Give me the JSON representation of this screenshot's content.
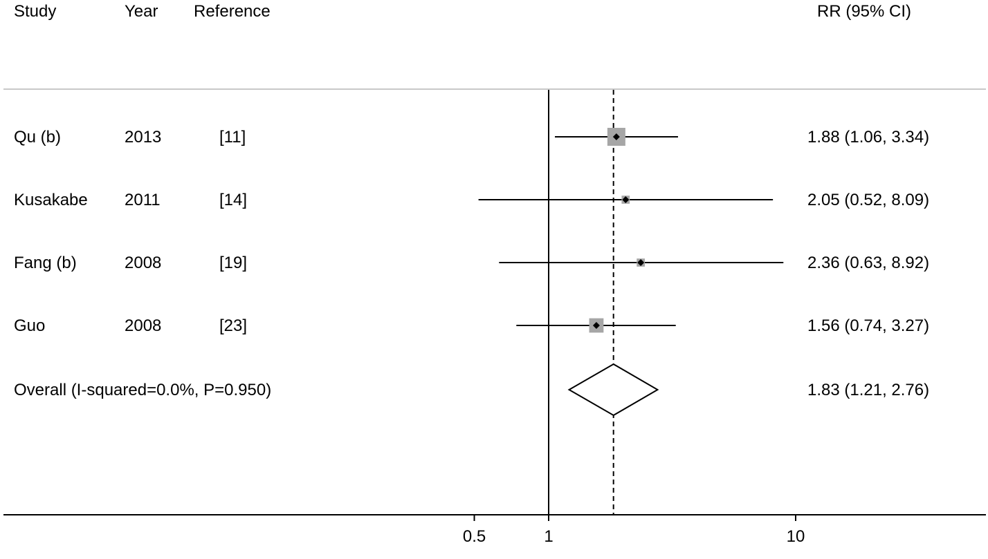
{
  "chart_data": {
    "type": "forest",
    "scale": "log",
    "headers": {
      "study": "Study",
      "year": "Year",
      "reference": "Reference",
      "effect": "RR (95% CI)"
    },
    "studies": [
      {
        "study": "Qu (b)",
        "year": "2013",
        "reference": "[11]",
        "rr": 1.88,
        "lower": 1.06,
        "upper": 3.34,
        "weight": 1.0,
        "label": "1.88 (1.06, 3.34)"
      },
      {
        "study": "Kusakabe",
        "year": "2011",
        "reference": "[14]",
        "rr": 2.05,
        "lower": 0.52,
        "upper": 8.09,
        "weight": 0.45,
        "label": "2.05 (0.52, 8.09)"
      },
      {
        "study": "Fang (b)",
        "year": "2008",
        "reference": "[19]",
        "rr": 2.36,
        "lower": 0.63,
        "upper": 8.92,
        "weight": 0.45,
        "label": "2.36 (0.63, 8.92)"
      },
      {
        "study": "Guo",
        "year": "2008",
        "reference": "[23]",
        "rr": 1.56,
        "lower": 0.74,
        "upper": 3.27,
        "weight": 0.8,
        "label": "1.56 (0.74, 3.27)"
      }
    ],
    "overall": {
      "label_text": "Overall  (I-squared=0.0%, P=0.950)",
      "rr": 1.83,
      "lower": 1.21,
      "upper": 2.76,
      "label": "1.83 (1.21, 2.76)"
    },
    "null_value": 1,
    "x_ticks": [
      {
        "value": 0.5,
        "label": "0.5"
      },
      {
        "value": 1,
        "label": "1"
      },
      {
        "value": 10,
        "label": "10"
      }
    ],
    "colors": {
      "line": "#000000",
      "box": "#a6a6a6",
      "separator": "#c8c8c8"
    }
  }
}
